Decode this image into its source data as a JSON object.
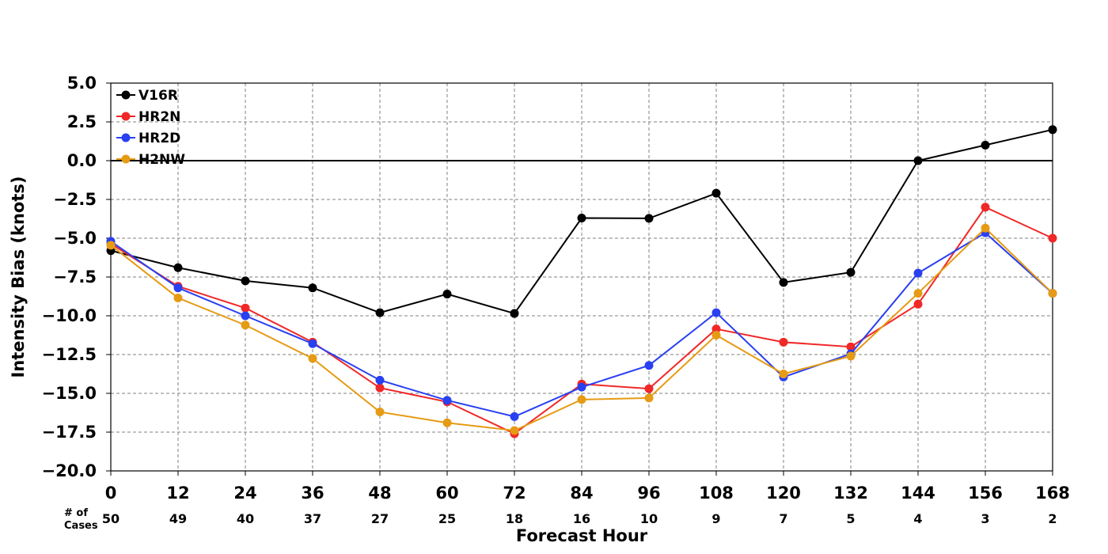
{
  "chart_data": {
    "type": "line",
    "title": "",
    "xlabel": "Forecast Hour",
    "ylabel": "Intensity Bias (knots)",
    "x": [
      0,
      12,
      24,
      36,
      48,
      60,
      72,
      84,
      96,
      108,
      120,
      132,
      144,
      156,
      168
    ],
    "xlim": [
      0,
      168
    ],
    "ylim": [
      -20.0,
      5.0
    ],
    "y_ticks": [
      5.0,
      2.5,
      0.0,
      -2.5,
      -5.0,
      -7.5,
      -10.0,
      -12.5,
      -15.0,
      -17.5,
      -20.0
    ],
    "y_tick_labels": [
      "5.0",
      "2.5",
      "0.0",
      "−2.5",
      "−5.0",
      "−7.5",
      "−10.0",
      "−12.5",
      "−15.0",
      "−17.5",
      "−20.0"
    ],
    "x_tick_labels": [
      "0",
      "12",
      "24",
      "36",
      "48",
      "60",
      "72",
      "84",
      "96",
      "108",
      "120",
      "132",
      "144",
      "156",
      "168"
    ],
    "grid": true,
    "legend_position": "top-left",
    "reference_line": 0.0,
    "cases_header": [
      "# of",
      "Cases"
    ],
    "cases": [
      "50",
      "49",
      "40",
      "37",
      "27",
      "25",
      "18",
      "16",
      "10",
      "9",
      "7",
      "5",
      "4",
      "3",
      "2"
    ],
    "series": [
      {
        "name": "V16R",
        "color": "#000000",
        "values": [
          -5.8,
          -6.9,
          -7.75,
          -8.2,
          -9.8,
          -8.6,
          -9.85,
          -3.7,
          -3.72,
          -2.1,
          -7.85,
          -7.2,
          0.0,
          1.0,
          2.0
        ]
      },
      {
        "name": "HR2N",
        "color": "#f02828",
        "values": [
          -5.35,
          -8.1,
          -9.5,
          -11.7,
          -14.65,
          -15.55,
          -17.6,
          -14.4,
          -14.7,
          -10.85,
          -11.7,
          -12.0,
          -9.25,
          -3.0,
          -5.0
        ]
      },
      {
        "name": "HR2D",
        "color": "#2840f0",
        "values": [
          -5.2,
          -8.2,
          -10.0,
          -11.8,
          -14.15,
          -15.45,
          -16.5,
          -14.6,
          -13.2,
          -9.8,
          -13.95,
          -12.45,
          -7.25,
          -4.65,
          -8.55
        ]
      },
      {
        "name": "H2NW",
        "color": "#e69b14",
        "values": [
          -5.45,
          -8.85,
          -10.6,
          -12.75,
          -16.2,
          -16.9,
          -17.4,
          -15.4,
          -15.3,
          -11.25,
          -13.75,
          -12.6,
          -8.55,
          -4.35,
          -8.55
        ]
      }
    ]
  }
}
